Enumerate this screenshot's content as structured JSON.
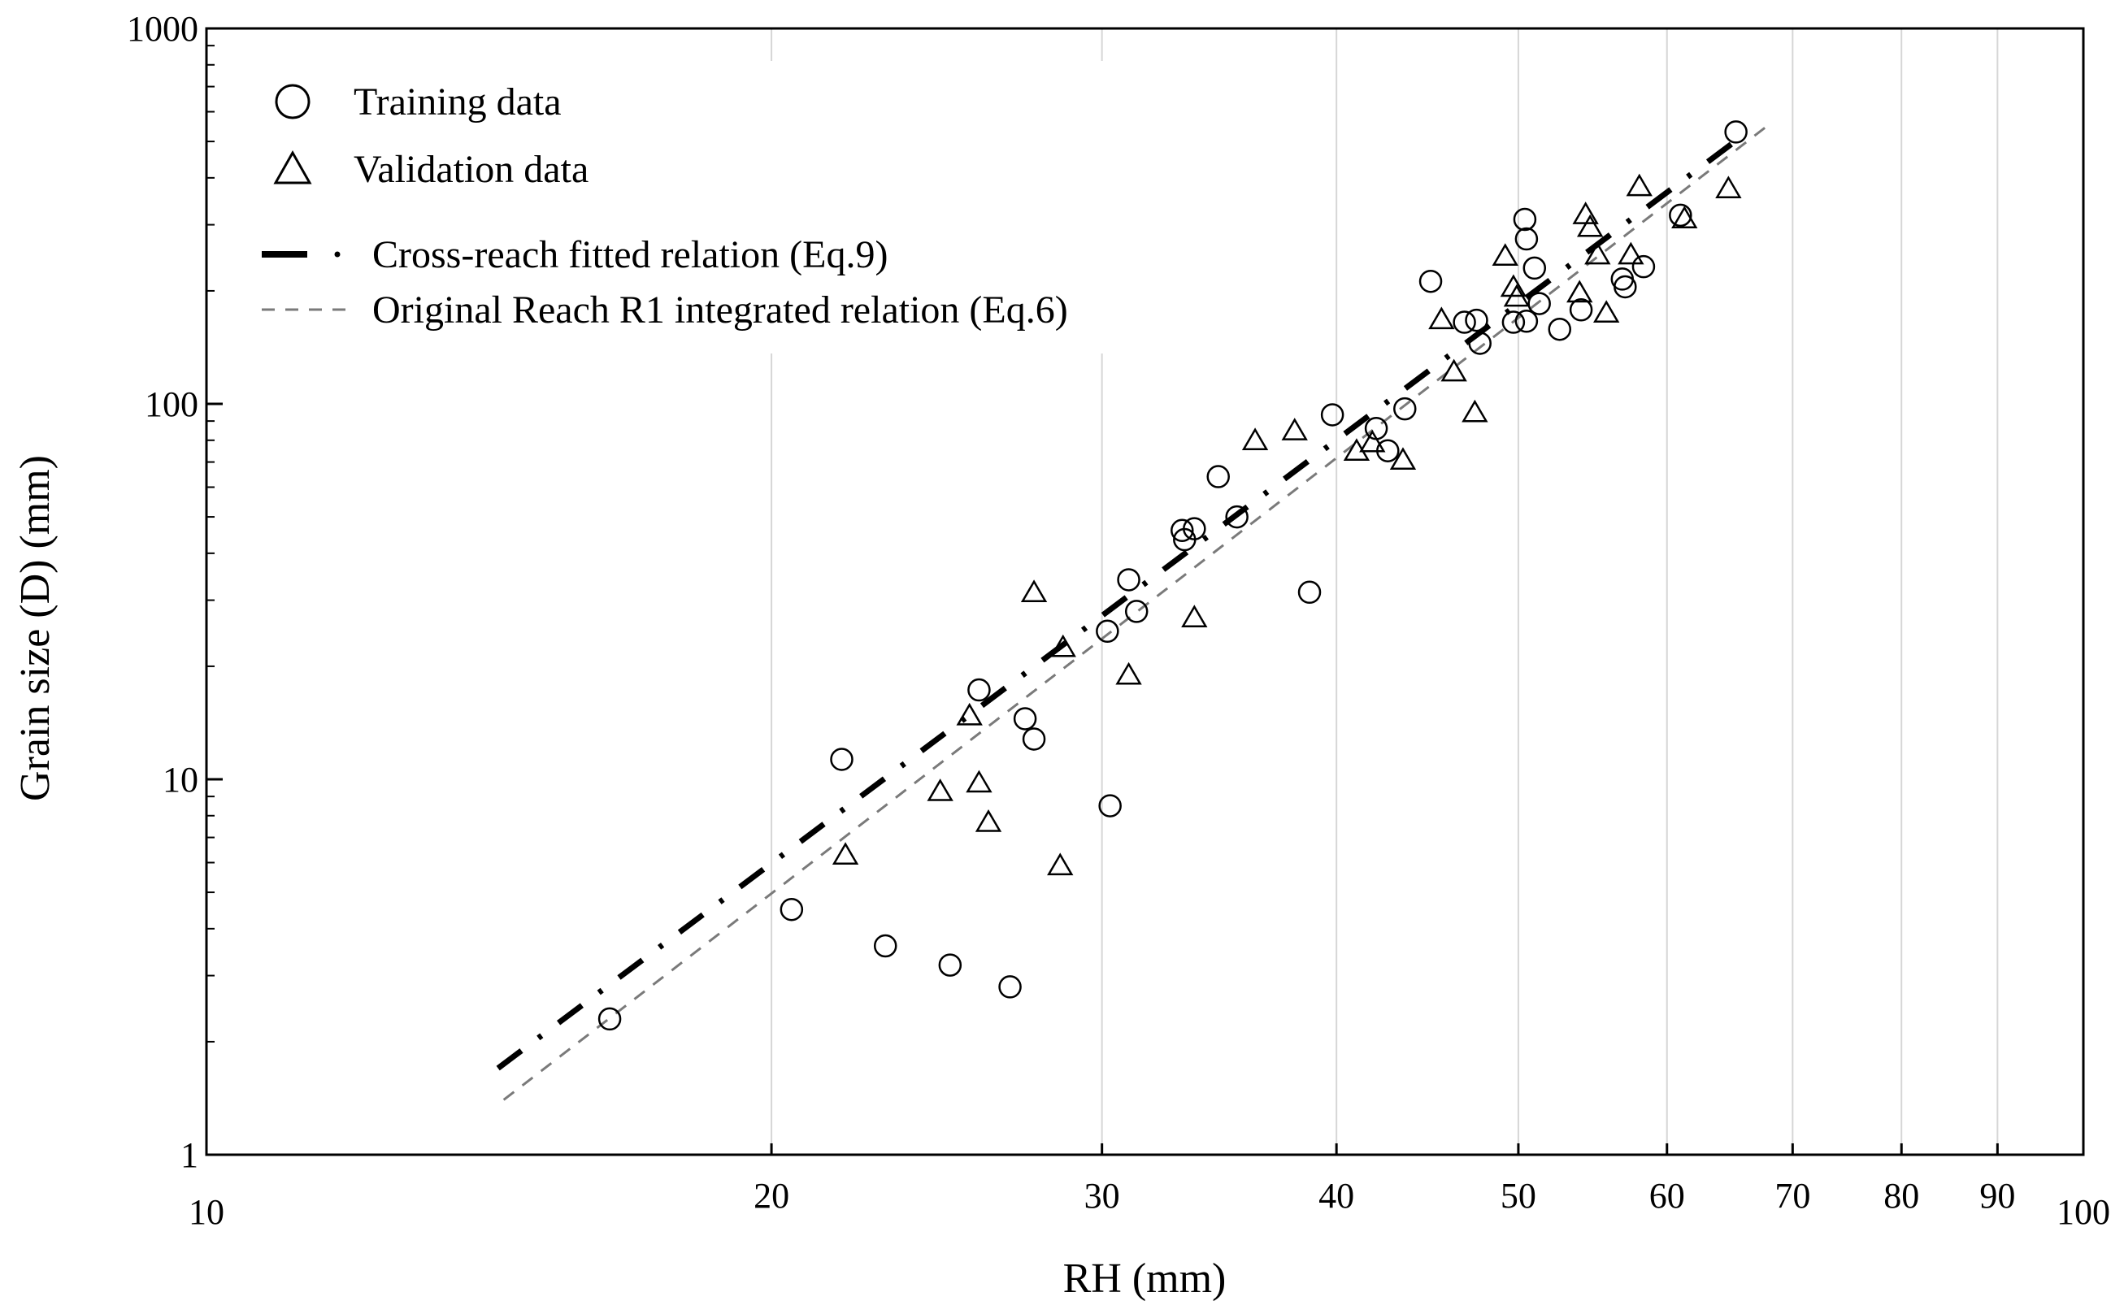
{
  "chart_data": {
    "type": "scatter",
    "title": "",
    "xlabel": "RH (mm)",
    "ylabel": "Grain size (D) (mm)",
    "xscale": "log",
    "yscale": "log",
    "xlim": [
      10,
      100
    ],
    "ylim": [
      1,
      1000
    ],
    "grid": "vertical",
    "legend_position": "top-left",
    "x_ticks": [
      {
        "value": 10,
        "label": "10"
      },
      {
        "value": 20,
        "label": "20"
      },
      {
        "value": 30,
        "label": "30"
      },
      {
        "value": 40,
        "label": "40"
      },
      {
        "value": 50,
        "label": "50"
      },
      {
        "value": 60,
        "label": "60"
      },
      {
        "value": 70,
        "label": "70"
      },
      {
        "value": 80,
        "label": "80"
      },
      {
        "value": 90,
        "label": "90"
      },
      {
        "value": 100,
        "label": "100"
      }
    ],
    "y_ticks": [
      {
        "value": 1,
        "label": "1"
      },
      {
        "value": 10,
        "label": "10"
      },
      {
        "value": 100,
        "label": "100"
      },
      {
        "value": 1000,
        "label": "1000"
      }
    ],
    "series": [
      {
        "name": "Training data",
        "marker": "circle",
        "points": [
          [
            16.4,
            2.3
          ],
          [
            20.5,
            4.5
          ],
          [
            21.8,
            11.3
          ],
          [
            23.0,
            3.6
          ],
          [
            24.9,
            3.2
          ],
          [
            25.8,
            17.3
          ],
          [
            26.8,
            2.8
          ],
          [
            27.3,
            14.5
          ],
          [
            27.6,
            12.8
          ],
          [
            30.3,
            8.5
          ],
          [
            30.2,
            24.8
          ],
          [
            31.0,
            34.0
          ],
          [
            31.3,
            28.0
          ],
          [
            33.1,
            46.0
          ],
          [
            33.2,
            43.5
          ],
          [
            33.6,
            46.5
          ],
          [
            34.6,
            64.0
          ],
          [
            35.4,
            50.0
          ],
          [
            38.7,
            31.5
          ],
          [
            39.8,
            93.5
          ],
          [
            42.0,
            86.0
          ],
          [
            42.6,
            75.0
          ],
          [
            43.5,
            97.0
          ],
          [
            44.9,
            212.0
          ],
          [
            46.8,
            165.0
          ],
          [
            47.5,
            167.0
          ],
          [
            47.7,
            145.0
          ],
          [
            49.7,
            165.0
          ],
          [
            50.4,
            310.0
          ],
          [
            50.5,
            275.0
          ],
          [
            50.5,
            166.0
          ],
          [
            51.0,
            230.0
          ],
          [
            51.3,
            185.0
          ],
          [
            52.6,
            158.0
          ],
          [
            54.0,
            178.0
          ],
          [
            56.8,
            215.0
          ],
          [
            57.0,
            205.0
          ],
          [
            58.3,
            232.0
          ],
          [
            61.0,
            318.0
          ],
          [
            65.3,
            530.0
          ]
        ]
      },
      {
        "name": "Validation data",
        "marker": "triangle",
        "points": [
          [
            21.9,
            6.3
          ],
          [
            24.6,
            9.3
          ],
          [
            25.5,
            14.8
          ],
          [
            25.8,
            9.8
          ],
          [
            26.1,
            7.7
          ],
          [
            27.6,
            31.5
          ],
          [
            28.5,
            5.9
          ],
          [
            28.6,
            22.5
          ],
          [
            31.0,
            19.0
          ],
          [
            33.6,
            27.0
          ],
          [
            36.2,
            80.0
          ],
          [
            38.0,
            85.0
          ],
          [
            41.0,
            75.0
          ],
          [
            41.8,
            79.0
          ],
          [
            43.4,
            71.0
          ],
          [
            45.5,
            168.0
          ],
          [
            46.2,
            122.0
          ],
          [
            47.4,
            95.0
          ],
          [
            49.2,
            248.0
          ],
          [
            49.7,
            205.0
          ],
          [
            49.9,
            193.0
          ],
          [
            53.9,
            198.0
          ],
          [
            54.3,
            320.0
          ],
          [
            54.6,
            296.0
          ],
          [
            55.1,
            250.0
          ],
          [
            55.7,
            175.0
          ],
          [
            57.4,
            250.0
          ],
          [
            58.0,
            380.0
          ],
          [
            61.3,
            312.0
          ],
          [
            64.7,
            375.0
          ]
        ]
      }
    ],
    "lines": [
      {
        "name": "Cross-reach fitted relation (Eq.9)",
        "style": "dash-dot",
        "color": "#000000",
        "x": [
          14.3,
          65.9
        ],
        "y": [
          1.7,
          520.0
        ]
      },
      {
        "name": "Original Reach R1 integrated relation (Eq.6)",
        "style": "dashed",
        "color": "#7a7a7a",
        "x": [
          14.4,
          67.7
        ],
        "y": [
          1.4,
          545.0
        ]
      }
    ],
    "legend": [
      {
        "label": "Training data",
        "symbol": "circle"
      },
      {
        "label": "Validation data",
        "symbol": "triangle"
      },
      {
        "label": "Cross-reach fitted relation (Eq.9)",
        "symbol": "dash-dot"
      },
      {
        "label": "Original Reach R1 integrated relation (Eq.6)",
        "symbol": "dashed"
      }
    ]
  },
  "colors": {
    "axis": "#000000",
    "grid": "#d6d6d6",
    "fit_line": "#000000",
    "original_line": "#7a7a7a"
  }
}
